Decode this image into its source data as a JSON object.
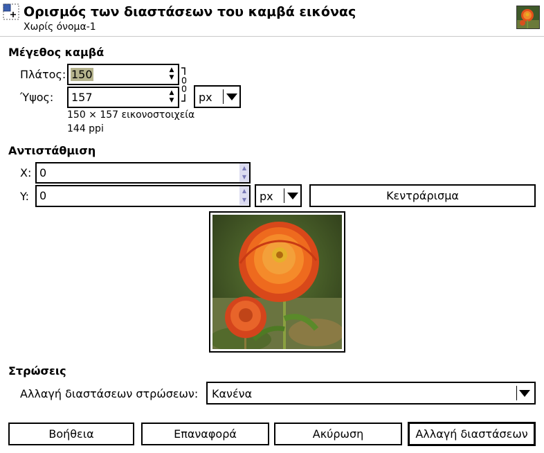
{
  "header": {
    "title": "Ορισμός των διαστάσεων του καμβά εικόνας",
    "subtitle": "Χωρίς όνομα-1"
  },
  "canvas_size": {
    "section": "Μέγεθος καμβά",
    "width_label": "Πλάτος:",
    "width_value": "150",
    "height_label": "Ύψος:",
    "height_value": "157",
    "unit": "px",
    "pixels_info": "150 × 157 εικονοστοιχεία",
    "resolution_info": "144 ppi"
  },
  "offset": {
    "section": "Αντιστάθμιση",
    "x_label": "X:",
    "x_value": "0",
    "y_label": "Y:",
    "y_value": "0",
    "unit": "px",
    "center_label": "Κεντράρισμα"
  },
  "layers": {
    "section": "Στρώσεις",
    "resize_label": "Αλλαγή διαστάσεων στρώσεων:",
    "resize_value": "Κανένα"
  },
  "buttons": {
    "help": "Βοήθεια",
    "reset": "Επαναφορά",
    "cancel": "Ακύρωση",
    "resize": "Αλλαγή διαστάσεων"
  },
  "colors": {
    "selection": "#b6b48e",
    "petal": "#f0701c",
    "foliage": "#4a6a28"
  },
  "icons": {
    "dialog": "canvas-size-icon",
    "chain": "chain-link-icon"
  }
}
